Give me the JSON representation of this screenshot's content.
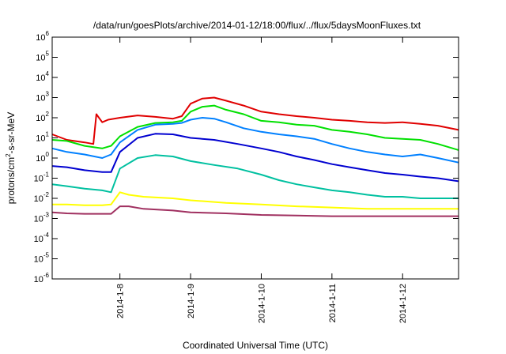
{
  "chart_data": {
    "type": "line",
    "title": "/data/run/goesPlots/archive/2014-01-12/18:00/flux/../flux/5daysMoonFluxes.txt",
    "xlabel": "Coordinated Universal Time (UTC)",
    "ylabel": "protons/cm²-s-sr-MeV",
    "y_scale": "log",
    "ylim": [
      1e-06,
      1000000.0
    ],
    "xlim": [
      "2014-01-07 01:00",
      "2014-01-12 19:00"
    ],
    "x_ticks": [
      "2014-1-8",
      "2014-1-9",
      "2014-1-10",
      "2014-1-11",
      "2014-1-12"
    ],
    "y_ticks": [
      {
        "v": 1e-06,
        "b": "10",
        "e": "-6"
      },
      {
        "v": 1e-05,
        "b": "10",
        "e": "-5"
      },
      {
        "v": 0.0001,
        "b": "10",
        "e": "-4"
      },
      {
        "v": 0.001,
        "b": "10",
        "e": "-3"
      },
      {
        "v": 0.01,
        "b": "10",
        "e": "-2"
      },
      {
        "v": 0.1,
        "b": "10",
        "e": "-1"
      },
      {
        "v": 1,
        "b": "10",
        "e": "0"
      },
      {
        "v": 10,
        "b": "10",
        "e": "1"
      },
      {
        "v": 100,
        "b": "10",
        "e": "2"
      },
      {
        "v": 1000,
        "b": "10",
        "e": "3"
      },
      {
        "v": 10000,
        "b": "10",
        "e": "4"
      },
      {
        "v": 100000,
        "b": "10",
        "e": "5"
      },
      {
        "v": 1000000,
        "b": "10",
        "e": "6"
      }
    ],
    "grid": false,
    "series": [
      {
        "color": "#e00000",
        "points": [
          [
            "2014-01-07 01:00",
            15
          ],
          [
            "2014-01-07 06:00",
            8
          ],
          [
            "2014-01-07 12:00",
            6
          ],
          [
            "2014-01-07 15:00",
            5
          ],
          [
            "2014-01-07 16:00",
            150
          ],
          [
            "2014-01-07 18:00",
            60
          ],
          [
            "2014-01-07 20:00",
            80
          ],
          [
            "2014-01-08 00:00",
            100
          ],
          [
            "2014-01-08 06:00",
            130
          ],
          [
            "2014-01-08 12:00",
            110
          ],
          [
            "2014-01-08 18:00",
            90
          ],
          [
            "2014-01-08 21:00",
            120
          ],
          [
            "2014-01-09 00:00",
            500
          ],
          [
            "2014-01-09 04:00",
            900
          ],
          [
            "2014-01-09 08:00",
            1000
          ],
          [
            "2014-01-09 12:00",
            700
          ],
          [
            "2014-01-09 18:00",
            400
          ],
          [
            "2014-01-10 00:00",
            200
          ],
          [
            "2014-01-10 06:00",
            150
          ],
          [
            "2014-01-10 12:00",
            120
          ],
          [
            "2014-01-10 18:00",
            100
          ],
          [
            "2014-01-11 00:00",
            80
          ],
          [
            "2014-01-11 06:00",
            70
          ],
          [
            "2014-01-11 12:00",
            60
          ],
          [
            "2014-01-11 18:00",
            55
          ],
          [
            "2014-01-12 00:00",
            60
          ],
          [
            "2014-01-12 06:00",
            50
          ],
          [
            "2014-01-12 12:00",
            40
          ],
          [
            "2014-01-12 19:00",
            25
          ]
        ]
      },
      {
        "color": "#00e000",
        "points": [
          [
            "2014-01-07 01:00",
            8
          ],
          [
            "2014-01-07 06:00",
            7
          ],
          [
            "2014-01-07 12:00",
            4
          ],
          [
            "2014-01-07 18:00",
            3
          ],
          [
            "2014-01-07 21:00",
            4
          ],
          [
            "2014-01-08 00:00",
            12
          ],
          [
            "2014-01-08 06:00",
            35
          ],
          [
            "2014-01-08 12:00",
            55
          ],
          [
            "2014-01-08 18:00",
            60
          ],
          [
            "2014-01-08 21:00",
            70
          ],
          [
            "2014-01-09 00:00",
            200
          ],
          [
            "2014-01-09 04:00",
            350
          ],
          [
            "2014-01-09 08:00",
            400
          ],
          [
            "2014-01-09 12:00",
            250
          ],
          [
            "2014-01-09 18:00",
            150
          ],
          [
            "2014-01-10 00:00",
            70
          ],
          [
            "2014-01-10 06:00",
            60
          ],
          [
            "2014-01-10 12:00",
            45
          ],
          [
            "2014-01-10 18:00",
            40
          ],
          [
            "2014-01-11 00:00",
            25
          ],
          [
            "2014-01-11 06:00",
            20
          ],
          [
            "2014-01-11 12:00",
            15
          ],
          [
            "2014-01-11 18:00",
            10
          ],
          [
            "2014-01-12 00:00",
            9
          ],
          [
            "2014-01-12 06:00",
            8
          ],
          [
            "2014-01-12 12:00",
            5
          ],
          [
            "2014-01-12 19:00",
            2.5
          ]
        ]
      },
      {
        "color": "#0080ff",
        "points": [
          [
            "2014-01-07 01:00",
            3
          ],
          [
            "2014-01-07 06:00",
            2
          ],
          [
            "2014-01-07 12:00",
            1.5
          ],
          [
            "2014-01-07 18:00",
            1
          ],
          [
            "2014-01-07 21:00",
            1.5
          ],
          [
            "2014-01-08 00:00",
            6
          ],
          [
            "2014-01-08 06:00",
            25
          ],
          [
            "2014-01-08 12:00",
            45
          ],
          [
            "2014-01-08 18:00",
            50
          ],
          [
            "2014-01-08 21:00",
            55
          ],
          [
            "2014-01-09 00:00",
            80
          ],
          [
            "2014-01-09 04:00",
            100
          ],
          [
            "2014-01-09 08:00",
            90
          ],
          [
            "2014-01-09 12:00",
            60
          ],
          [
            "2014-01-09 18:00",
            30
          ],
          [
            "2014-01-10 00:00",
            20
          ],
          [
            "2014-01-10 06:00",
            15
          ],
          [
            "2014-01-10 12:00",
            12
          ],
          [
            "2014-01-10 18:00",
            9
          ],
          [
            "2014-01-11 00:00",
            5
          ],
          [
            "2014-01-11 06:00",
            3
          ],
          [
            "2014-01-11 12:00",
            2
          ],
          [
            "2014-01-11 18:00",
            1.5
          ],
          [
            "2014-01-12 00:00",
            1.2
          ],
          [
            "2014-01-12 06:00",
            1.5
          ],
          [
            "2014-01-12 12:00",
            1
          ],
          [
            "2014-01-12 19:00",
            0.6
          ]
        ]
      },
      {
        "color": "#0000d0",
        "points": [
          [
            "2014-01-07 01:00",
            0.4
          ],
          [
            "2014-01-07 06:00",
            0.35
          ],
          [
            "2014-01-07 12:00",
            0.25
          ],
          [
            "2014-01-07 18:00",
            0.2
          ],
          [
            "2014-01-07 21:00",
            0.2
          ],
          [
            "2014-01-08 00:00",
            2
          ],
          [
            "2014-01-08 06:00",
            10
          ],
          [
            "2014-01-08 12:00",
            16
          ],
          [
            "2014-01-08 18:00",
            15
          ],
          [
            "2014-01-09 00:00",
            10
          ],
          [
            "2014-01-09 08:00",
            8
          ],
          [
            "2014-01-09 16:00",
            5
          ],
          [
            "2014-01-10 00:00",
            3
          ],
          [
            "2014-01-10 06:00",
            2
          ],
          [
            "2014-01-10 12:00",
            1.2
          ],
          [
            "2014-01-10 18:00",
            0.8
          ],
          [
            "2014-01-11 00:00",
            0.5
          ],
          [
            "2014-01-11 06:00",
            0.35
          ],
          [
            "2014-01-11 12:00",
            0.25
          ],
          [
            "2014-01-11 18:00",
            0.18
          ],
          [
            "2014-01-12 00:00",
            0.15
          ],
          [
            "2014-01-12 06:00",
            0.12
          ],
          [
            "2014-01-12 12:00",
            0.1
          ],
          [
            "2014-01-12 19:00",
            0.07
          ]
        ]
      },
      {
        "color": "#00c0a0",
        "points": [
          [
            "2014-01-07 01:00",
            0.05
          ],
          [
            "2014-01-07 06:00",
            0.04
          ],
          [
            "2014-01-07 12:00",
            0.03
          ],
          [
            "2014-01-07 18:00",
            0.025
          ],
          [
            "2014-01-07 21:00",
            0.02
          ],
          [
            "2014-01-08 00:00",
            0.3
          ],
          [
            "2014-01-08 06:00",
            1
          ],
          [
            "2014-01-08 12:00",
            1.4
          ],
          [
            "2014-01-08 18:00",
            1.2
          ],
          [
            "2014-01-09 00:00",
            0.7
          ],
          [
            "2014-01-09 08:00",
            0.45
          ],
          [
            "2014-01-09 16:00",
            0.3
          ],
          [
            "2014-01-10 00:00",
            0.15
          ],
          [
            "2014-01-10 06:00",
            0.08
          ],
          [
            "2014-01-10 12:00",
            0.05
          ],
          [
            "2014-01-10 18:00",
            0.035
          ],
          [
            "2014-01-11 00:00",
            0.025
          ],
          [
            "2014-01-11 06:00",
            0.02
          ],
          [
            "2014-01-11 12:00",
            0.015
          ],
          [
            "2014-01-11 18:00",
            0.012
          ],
          [
            "2014-01-12 00:00",
            0.012
          ],
          [
            "2014-01-12 06:00",
            0.01
          ],
          [
            "2014-01-12 12:00",
            0.01
          ],
          [
            "2014-01-12 19:00",
            0.01
          ]
        ]
      },
      {
        "color": "#ffff00",
        "points": [
          [
            "2014-01-07 01:00",
            0.005
          ],
          [
            "2014-01-07 06:00",
            0.005
          ],
          [
            "2014-01-07 12:00",
            0.0045
          ],
          [
            "2014-01-07 18:00",
            0.0045
          ],
          [
            "2014-01-07 21:00",
            0.005
          ],
          [
            "2014-01-08 00:00",
            0.02
          ],
          [
            "2014-01-08 03:00",
            0.015
          ],
          [
            "2014-01-08 08:00",
            0.012
          ],
          [
            "2014-01-08 18:00",
            0.01
          ],
          [
            "2014-01-09 00:00",
            0.008
          ],
          [
            "2014-01-09 12:00",
            0.006
          ],
          [
            "2014-01-10 00:00",
            0.005
          ],
          [
            "2014-01-10 12:00",
            0.004
          ],
          [
            "2014-01-11 00:00",
            0.0035
          ],
          [
            "2014-01-11 12:00",
            0.003
          ],
          [
            "2014-01-12 00:00",
            0.003
          ],
          [
            "2014-01-12 19:00",
            0.003
          ]
        ]
      },
      {
        "color": "#a03060",
        "points": [
          [
            "2014-01-07 01:00",
            0.002
          ],
          [
            "2014-01-07 06:00",
            0.0018
          ],
          [
            "2014-01-07 12:00",
            0.0017
          ],
          [
            "2014-01-07 18:00",
            0.0017
          ],
          [
            "2014-01-07 21:00",
            0.0017
          ],
          [
            "2014-01-08 00:00",
            0.004
          ],
          [
            "2014-01-08 03:00",
            0.004
          ],
          [
            "2014-01-08 08:00",
            0.003
          ],
          [
            "2014-01-08 18:00",
            0.0025
          ],
          [
            "2014-01-09 00:00",
            0.002
          ],
          [
            "2014-01-09 12:00",
            0.0018
          ],
          [
            "2014-01-10 00:00",
            0.0015
          ],
          [
            "2014-01-10 12:00",
            0.0014
          ],
          [
            "2014-01-11 00:00",
            0.0013
          ],
          [
            "2014-01-11 12:00",
            0.0013
          ],
          [
            "2014-01-12 00:00",
            0.0013
          ],
          [
            "2014-01-12 19:00",
            0.0013
          ]
        ]
      }
    ]
  }
}
